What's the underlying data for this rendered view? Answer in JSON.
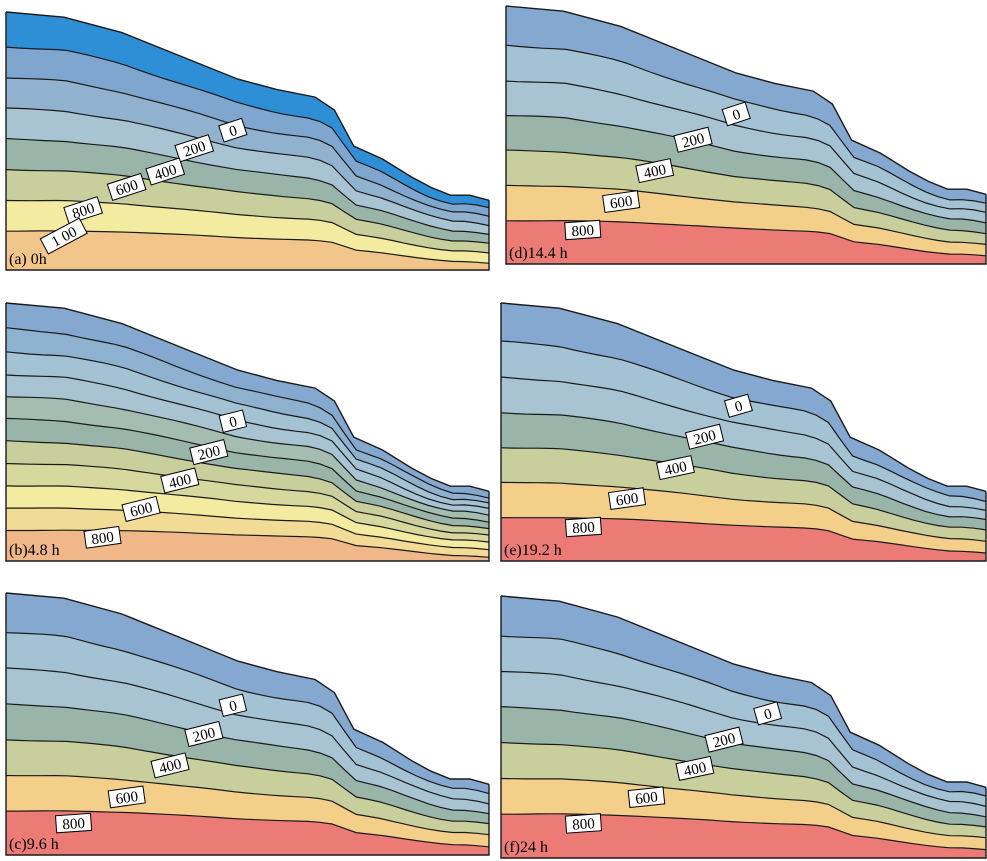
{
  "figure": {
    "panels": [
      {
        "id": "a",
        "label": "(a) 0h",
        "bands": [
          "#2f8fd6",
          "#7ea6cf",
          "#90b2cf",
          "#a8c4d2",
          "#99b4a8",
          "#c8ce9c",
          "#f2eba0",
          "#f2c68a"
        ],
        "contour_labels": [
          "0",
          "200",
          "400",
          "600",
          "800",
          "1 00"
        ]
      },
      {
        "id": "b",
        "label": "(b)4.8 h",
        "bands": [
          "#85a8d0",
          "#8fb1d0",
          "#a3c2d3",
          "#a8c4d2",
          "#a4bdb0",
          "#99b4a8",
          "#c8ce9c",
          "#d6d89e",
          "#f2eba0",
          "#f2dc95",
          "#f0b888"
        ],
        "contour_labels": [
          "0",
          "200",
          "400",
          "600",
          "800"
        ]
      },
      {
        "id": "c",
        "label": "(c)9.6 h",
        "bands": [
          "#85a8d0",
          "#a3c2d3",
          "#a8c4d2",
          "#99b4a8",
          "#c8ce9c",
          "#f4cf8a",
          "#ec7b76"
        ],
        "contour_labels": [
          "0",
          "200",
          "400",
          "600",
          "800"
        ]
      },
      {
        "id": "d",
        "label": "(d)14.4 h",
        "bands": [
          "#85a8d0",
          "#a3c2d3",
          "#a8c4d2",
          "#99b4a8",
          "#c8ce9c",
          "#f4cf8a",
          "#ec7b76"
        ],
        "contour_labels": [
          "0",
          "200",
          "400",
          "600",
          "800"
        ]
      },
      {
        "id": "e",
        "label": "(e)19.2 h",
        "bands": [
          "#85a8d0",
          "#a3c2d3",
          "#a8c4d2",
          "#99b4a8",
          "#c8ce9c",
          "#f4cf8a",
          "#ec7b76"
        ],
        "contour_labels": [
          "0",
          "200",
          "400",
          "600",
          "800"
        ]
      },
      {
        "id": "f",
        "label": "(f)24 h",
        "bands": [
          "#85a8d0",
          "#a3c2d3",
          "#a8c4d2",
          "#99b4a8",
          "#c8ce9c",
          "#f4cf8a",
          "#ec7b76"
        ],
        "contour_labels": [
          "0",
          "200",
          "400",
          "600",
          "800"
        ]
      }
    ]
  }
}
